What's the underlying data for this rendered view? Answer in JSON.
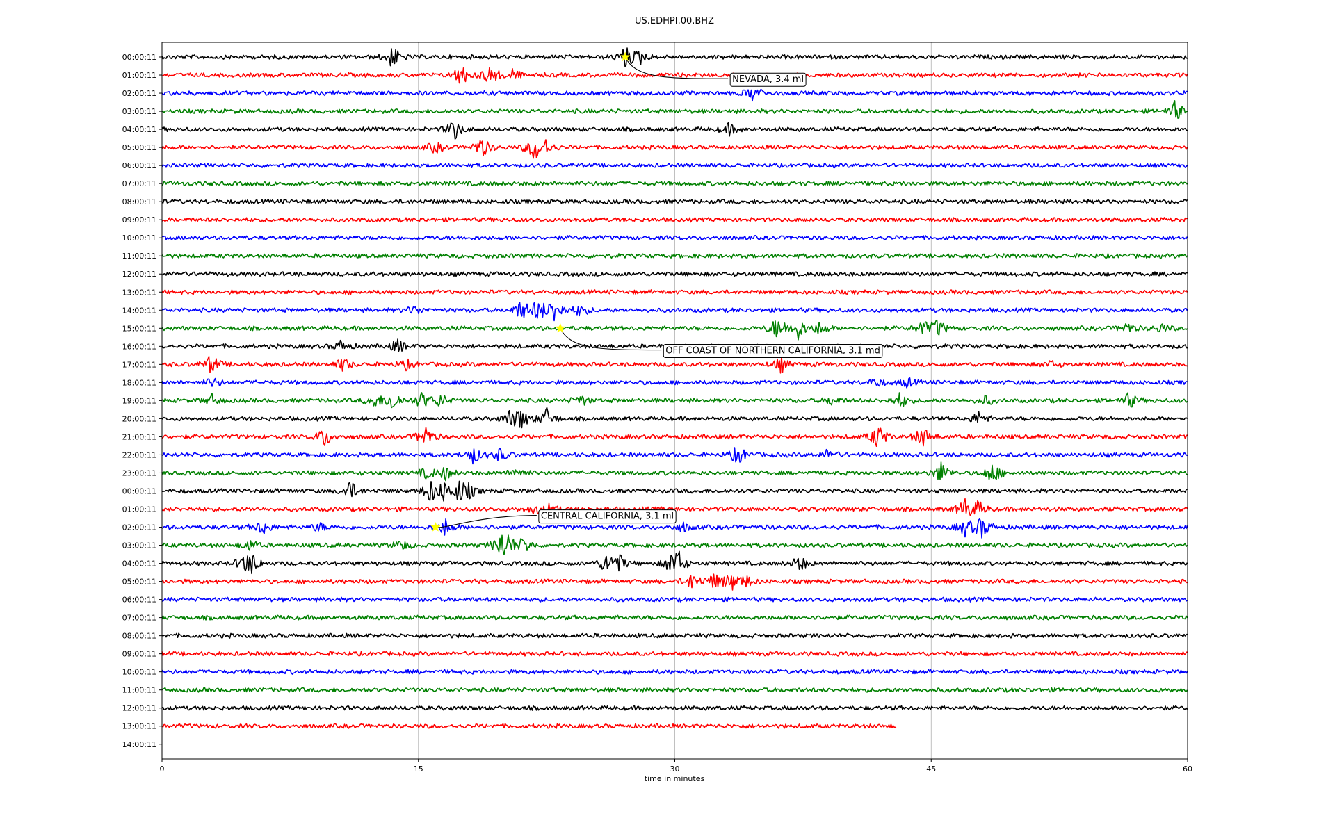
{
  "chart_data": {
    "type": "line",
    "title": "US.EDHPI.00.BHZ",
    "xlabel": "time in minutes",
    "xlim": [
      0,
      60
    ],
    "xticks": [
      0,
      15,
      30,
      45,
      60
    ],
    "grid": "vertical",
    "colors": [
      "#000000",
      "#ff0000",
      "#0000ff",
      "#008000"
    ],
    "row_labels": [
      "00:00:11",
      "01:00:11",
      "02:00:11",
      "03:00:11",
      "04:00:11",
      "05:00:11",
      "06:00:11",
      "07:00:11",
      "08:00:11",
      "09:00:11",
      "10:00:11",
      "11:00:11",
      "12:00:11",
      "13:00:11",
      "14:00:11",
      "15:00:11",
      "16:00:11",
      "17:00:11",
      "18:00:11",
      "19:00:11",
      "20:00:11",
      "21:00:11",
      "22:00:11",
      "23:00:11",
      "00:00:11",
      "01:00:11",
      "02:00:11",
      "03:00:11",
      "04:00:11",
      "05:00:11",
      "06:00:11",
      "07:00:11",
      "08:00:11",
      "09:00:11",
      "10:00:11",
      "11:00:11",
      "12:00:11",
      "13:00:11",
      "14:00:11"
    ],
    "rows": [
      {
        "label": "00:00:11",
        "end": 60,
        "events": [
          {
            "t": 13.5,
            "a": 1.0
          },
          {
            "t": 27.1,
            "a": 1.0
          },
          {
            "t": 28.0,
            "a": 0.6
          }
        ]
      },
      {
        "label": "01:00:11",
        "end": 60,
        "events": [
          {
            "t": 17.5,
            "a": 1.0
          },
          {
            "t": 19.2,
            "a": 0.9
          },
          {
            "t": 20.5,
            "a": 0.5
          }
        ]
      },
      {
        "label": "02:00:11",
        "end": 60,
        "events": [
          {
            "t": 34.6,
            "a": 0.8
          }
        ]
      },
      {
        "label": "03:00:11",
        "end": 60,
        "events": [
          {
            "t": 59.3,
            "a": 0.9
          }
        ]
      },
      {
        "label": "04:00:11",
        "end": 60,
        "events": [
          {
            "t": 17.1,
            "a": 1.0
          },
          {
            "t": 33.2,
            "a": 0.5
          }
        ]
      },
      {
        "label": "05:00:11",
        "end": 60,
        "events": [
          {
            "t": 16.0,
            "a": 0.5
          },
          {
            "t": 18.7,
            "a": 1.0
          },
          {
            "t": 21.8,
            "a": 1.2
          },
          {
            "t": 22.5,
            "a": 0.6
          }
        ]
      },
      {
        "label": "06:00:11",
        "end": 60,
        "events": []
      },
      {
        "label": "07:00:11",
        "end": 60,
        "events": []
      },
      {
        "label": "08:00:11",
        "end": 60,
        "events": []
      },
      {
        "label": "09:00:11",
        "end": 60,
        "events": []
      },
      {
        "label": "10:00:11",
        "end": 60,
        "events": []
      },
      {
        "label": "11:00:11",
        "end": 60,
        "events": []
      },
      {
        "label": "12:00:11",
        "end": 60,
        "events": []
      },
      {
        "label": "13:00:11",
        "end": 60,
        "events": []
      },
      {
        "label": "14:00:11",
        "end": 60,
        "events": [
          {
            "t": 14.8,
            "a": 0.4
          },
          {
            "t": 21.0,
            "a": 0.9
          },
          {
            "t": 22.0,
            "a": 1.0
          },
          {
            "t": 23.0,
            "a": 1.2
          },
          {
            "t": 24.5,
            "a": 0.6
          }
        ]
      },
      {
        "label": "15:00:11",
        "end": 60,
        "events": [
          {
            "t": 36.0,
            "a": 1.0
          },
          {
            "t": 37.2,
            "a": 1.0
          },
          {
            "t": 38.5,
            "a": 0.6
          },
          {
            "t": 44.5,
            "a": 0.6
          },
          {
            "t": 45.4,
            "a": 0.8
          },
          {
            "t": 56.5,
            "a": 0.5
          },
          {
            "t": 58.5,
            "a": 0.4
          }
        ]
      },
      {
        "label": "16:00:11",
        "end": 60,
        "events": [
          {
            "t": 10.5,
            "a": 0.5
          },
          {
            "t": 13.8,
            "a": 0.6
          }
        ]
      },
      {
        "label": "17:00:11",
        "end": 60,
        "events": [
          {
            "t": 2.9,
            "a": 0.9
          },
          {
            "t": 10.6,
            "a": 0.6
          },
          {
            "t": 14.3,
            "a": 0.4
          },
          {
            "t": 36.2,
            "a": 0.7
          },
          {
            "t": 52.0,
            "a": 0.3
          }
        ]
      },
      {
        "label": "18:00:11",
        "end": 60,
        "events": [
          {
            "t": 3.0,
            "a": 0.4
          },
          {
            "t": 41.8,
            "a": 0.4
          },
          {
            "t": 43.6,
            "a": 0.4
          }
        ]
      },
      {
        "label": "19:00:11",
        "end": 60,
        "events": [
          {
            "t": 2.9,
            "a": 0.5
          },
          {
            "t": 12.4,
            "a": 0.6
          },
          {
            "t": 13.5,
            "a": 1.0
          },
          {
            "t": 15.2,
            "a": 0.7
          },
          {
            "t": 16.3,
            "a": 0.6
          },
          {
            "t": 24.5,
            "a": 0.5
          },
          {
            "t": 39.2,
            "a": 0.4
          },
          {
            "t": 43.2,
            "a": 0.7
          },
          {
            "t": 48.2,
            "a": 0.4
          },
          {
            "t": 56.6,
            "a": 0.7
          }
        ]
      },
      {
        "label": "20:00:11",
        "end": 60,
        "events": [
          {
            "t": 20.3,
            "a": 0.6
          },
          {
            "t": 21.0,
            "a": 1.0
          },
          {
            "t": 22.5,
            "a": 0.9
          },
          {
            "t": 47.8,
            "a": 0.6
          }
        ]
      },
      {
        "label": "21:00:11",
        "end": 60,
        "events": [
          {
            "t": 9.5,
            "a": 0.9
          },
          {
            "t": 15.4,
            "a": 1.0
          },
          {
            "t": 41.9,
            "a": 1.2
          },
          {
            "t": 44.5,
            "a": 1.0
          }
        ]
      },
      {
        "label": "22:00:11",
        "end": 60,
        "events": [
          {
            "t": 18.2,
            "a": 0.8
          },
          {
            "t": 19.8,
            "a": 0.6
          },
          {
            "t": 33.7,
            "a": 0.9
          },
          {
            "t": 39.0,
            "a": 0.5
          }
        ]
      },
      {
        "label": "23:00:11",
        "end": 60,
        "events": [
          {
            "t": 15.5,
            "a": 0.5
          },
          {
            "t": 16.6,
            "a": 0.6
          },
          {
            "t": 20.8,
            "a": 0.5
          },
          {
            "t": 45.6,
            "a": 1.0
          },
          {
            "t": 48.6,
            "a": 1.0
          }
        ]
      },
      {
        "label": "00:00:11",
        "end": 60,
        "events": [
          {
            "t": 11.0,
            "a": 0.9
          },
          {
            "t": 15.7,
            "a": 1.0
          },
          {
            "t": 16.5,
            "a": 0.8
          },
          {
            "t": 17.4,
            "a": 0.9
          },
          {
            "t": 18.0,
            "a": 0.5
          }
        ]
      },
      {
        "label": "01:00:11",
        "end": 60,
        "events": [
          {
            "t": 21.8,
            "a": 0.4
          },
          {
            "t": 22.7,
            "a": 0.4
          },
          {
            "t": 47.0,
            "a": 1.0
          },
          {
            "t": 47.8,
            "a": 0.6
          }
        ]
      },
      {
        "label": "02:00:11",
        "end": 60,
        "events": [
          {
            "t": 5.9,
            "a": 0.7
          },
          {
            "t": 9.2,
            "a": 0.4
          },
          {
            "t": 16.6,
            "a": 0.8
          },
          {
            "t": 30.5,
            "a": 0.4
          },
          {
            "t": 47.0,
            "a": 0.8
          },
          {
            "t": 48.0,
            "a": 1.0
          }
        ]
      },
      {
        "label": "03:00:11",
        "end": 60,
        "events": [
          {
            "t": 5.1,
            "a": 0.5
          },
          {
            "t": 14.0,
            "a": 0.5
          },
          {
            "t": 19.8,
            "a": 1.0
          },
          {
            "t": 20.2,
            "a": 0.8
          },
          {
            "t": 21.2,
            "a": 0.7
          }
        ]
      },
      {
        "label": "04:00:11",
        "end": 60,
        "events": [
          {
            "t": 4.8,
            "a": 0.7
          },
          {
            "t": 5.3,
            "a": 0.8
          },
          {
            "t": 26.0,
            "a": 0.8
          },
          {
            "t": 26.7,
            "a": 0.8
          },
          {
            "t": 29.8,
            "a": 0.7
          },
          {
            "t": 30.2,
            "a": 1.0
          },
          {
            "t": 37.3,
            "a": 0.7
          }
        ]
      },
      {
        "label": "05:00:11",
        "end": 60,
        "events": [
          {
            "t": 31.0,
            "a": 0.7
          },
          {
            "t": 32.3,
            "a": 0.7
          },
          {
            "t": 33.3,
            "a": 0.8
          },
          {
            "t": 34.2,
            "a": 0.5
          }
        ]
      },
      {
        "label": "06:00:11",
        "end": 60,
        "events": []
      },
      {
        "label": "07:00:11",
        "end": 60,
        "events": []
      },
      {
        "label": "08:00:11",
        "end": 60,
        "events": []
      },
      {
        "label": "09:00:11",
        "end": 60,
        "events": []
      },
      {
        "label": "10:00:11",
        "end": 60,
        "events": []
      },
      {
        "label": "11:00:11",
        "end": 60,
        "events": []
      },
      {
        "label": "12:00:11",
        "end": 60,
        "events": []
      },
      {
        "label": "13:00:11",
        "end": 43,
        "events": []
      },
      {
        "label": "14:00:11",
        "end": 0,
        "events": []
      }
    ],
    "annotations": [
      {
        "text": "NEVADA, 3.4 ml",
        "row": 0,
        "t": 27.1,
        "label_row": 1.2,
        "label_t": 33.2
      },
      {
        "text": "OFF COAST OF NORTHERN CALIFORNIA, 3.1 md",
        "row": 15,
        "t": 23.3,
        "label_row": 16.2,
        "label_t": 29.3
      },
      {
        "text": "CENTRAL CALIFORNIA, 3.1 ml",
        "row": 26,
        "t": 16.0,
        "label_row": 25.35,
        "label_t": 22.0
      }
    ],
    "marker_color": "#ffff00"
  }
}
